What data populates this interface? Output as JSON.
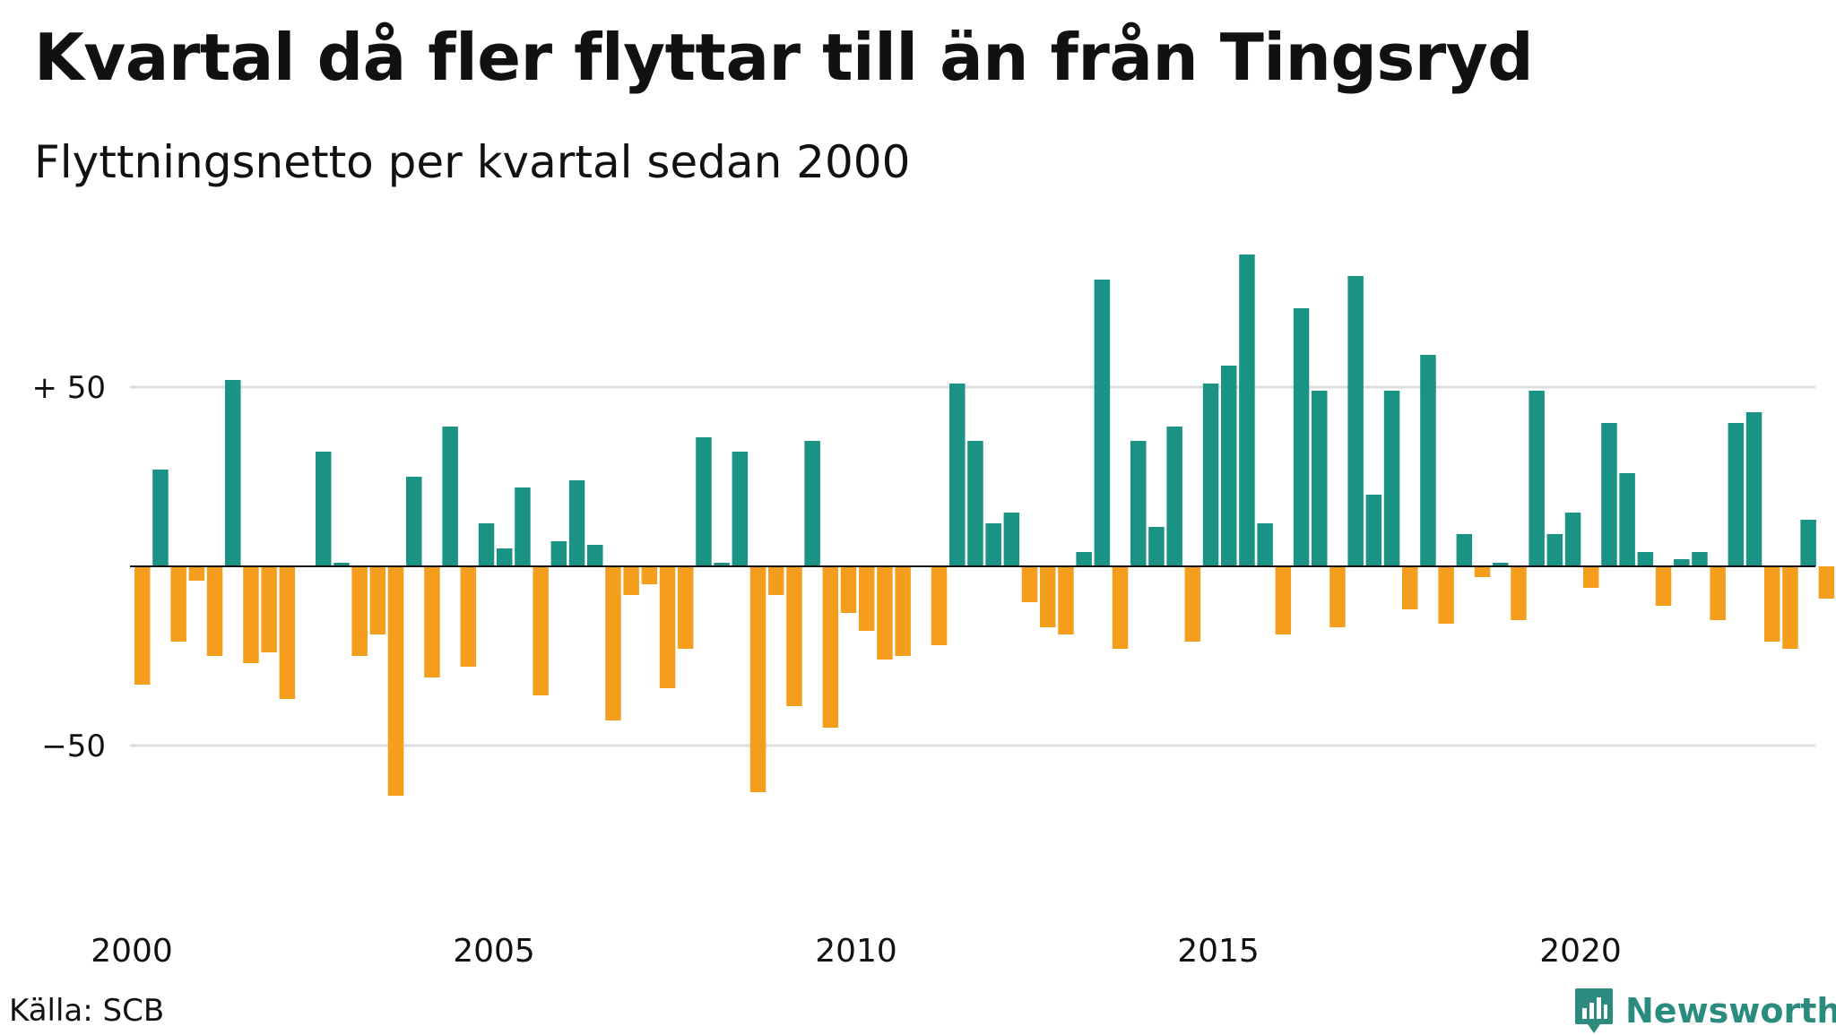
{
  "title": "Kvartal då fler flyttar till än från Tingsryd",
  "subtitle": "Flyttningsnetto per kvartal sedan 2000",
  "source": "Källa: SCB",
  "brand": {
    "name": "Newsworthy",
    "icon": "newsworthy-logo-icon",
    "color": "#2a8b7e"
  },
  "colors": {
    "positive": "#1a9384",
    "negative": "#f59e1d",
    "grid": "#dddddd",
    "zero_line": "#111111"
  },
  "chart_data": {
    "type": "bar",
    "title": "Kvartal då fler flyttar till än från Tingsryd",
    "subtitle": "Flyttningsnetto per kvartal sedan 2000",
    "x_unit": "quarter",
    "x_start_year": 2000,
    "x_start_quarter": 1,
    "x_tick_labels": [
      "2000",
      "2005",
      "2010",
      "2015",
      "2020"
    ],
    "y_tick_labels": [
      {
        "value": 50,
        "label": "+ 50"
      },
      {
        "value": -50,
        "label": "−50"
      }
    ],
    "ylim": [
      -70,
      90
    ],
    "grid": true,
    "legend": "none",
    "values": [
      -33,
      27,
      -21,
      -4,
      -25,
      52,
      -27,
      -24,
      -37,
      0,
      32,
      1,
      -25,
      -19,
      -64,
      25,
      -31,
      39,
      -28,
      12,
      5,
      22,
      -36,
      7,
      24,
      6,
      -43,
      -8,
      -5,
      -34,
      -23,
      36,
      1,
      32,
      -63,
      -8,
      -39,
      35,
      -45,
      -13,
      -18,
      -26,
      -25,
      0,
      -22,
      51,
      35,
      12,
      15,
      -10,
      -17,
      -19,
      4,
      80,
      -23,
      35,
      11,
      39,
      -21,
      51,
      56,
      87,
      12,
      -19,
      72,
      49,
      -17,
      81,
      20,
      49,
      -12,
      59,
      -16,
      9,
      -3,
      1,
      -15,
      49,
      9,
      15,
      -6,
      40,
      26,
      4,
      -11,
      2,
      4,
      -15,
      40,
      43,
      -21,
      -23,
      13,
      -9
    ]
  }
}
